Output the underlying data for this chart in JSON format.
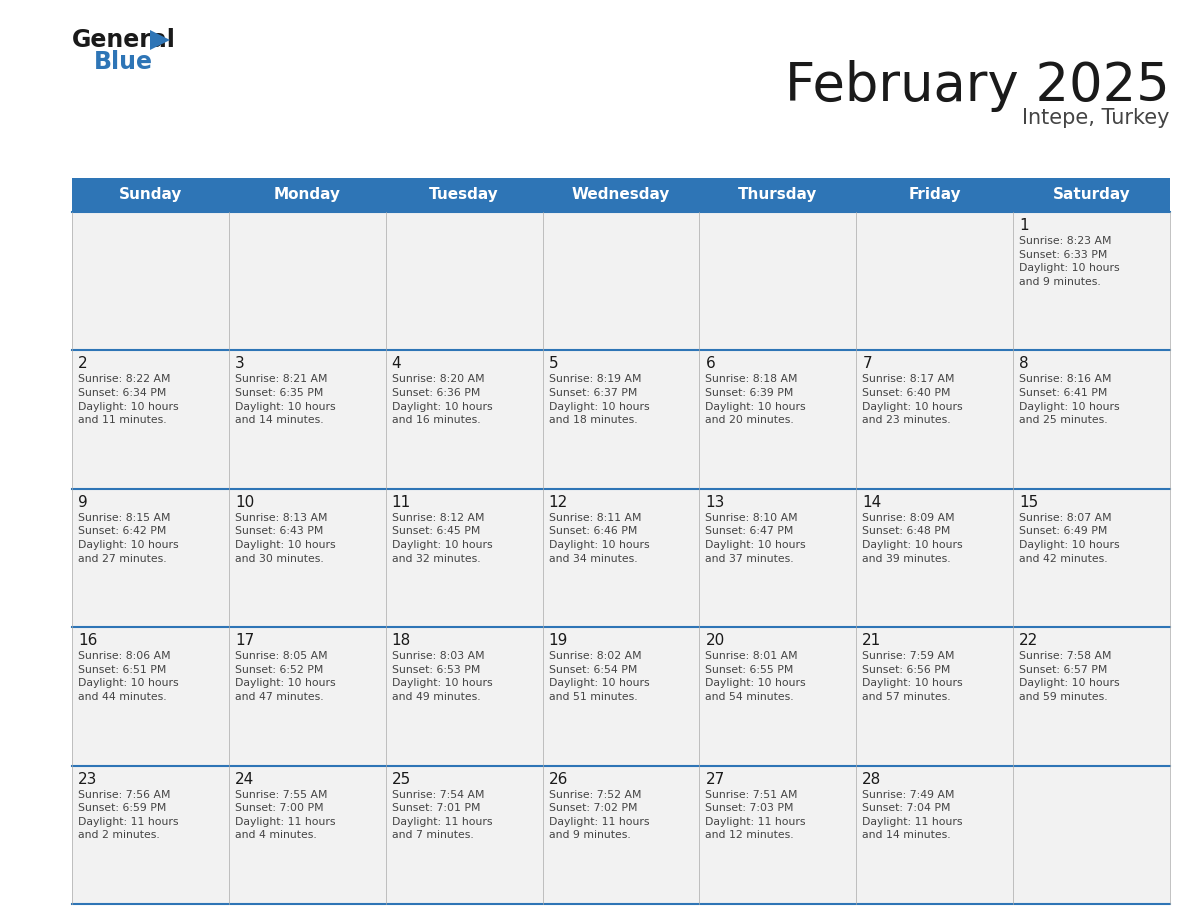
{
  "title": "February 2025",
  "subtitle": "Intepe, Turkey",
  "header_bg": "#2e75b6",
  "header_text_color": "#ffffff",
  "cell_bg": "#f2f2f2",
  "day_headers": [
    "Sunday",
    "Monday",
    "Tuesday",
    "Wednesday",
    "Thursday",
    "Friday",
    "Saturday"
  ],
  "title_color": "#1a1a1a",
  "subtitle_color": "#444444",
  "day_number_color": "#1a1a1a",
  "cell_text_color": "#444444",
  "grid_line_color": "#2e75b6",
  "logo_general_color": "#1a1a1a",
  "logo_blue_color": "#2e75b6",
  "logo_triangle_color": "#2e75b6",
  "weeks": [
    [
      {
        "day": "",
        "info": ""
      },
      {
        "day": "",
        "info": ""
      },
      {
        "day": "",
        "info": ""
      },
      {
        "day": "",
        "info": ""
      },
      {
        "day": "",
        "info": ""
      },
      {
        "day": "",
        "info": ""
      },
      {
        "day": "1",
        "info": "Sunrise: 8:23 AM\nSunset: 6:33 PM\nDaylight: 10 hours\nand 9 minutes."
      }
    ],
    [
      {
        "day": "2",
        "info": "Sunrise: 8:22 AM\nSunset: 6:34 PM\nDaylight: 10 hours\nand 11 minutes."
      },
      {
        "day": "3",
        "info": "Sunrise: 8:21 AM\nSunset: 6:35 PM\nDaylight: 10 hours\nand 14 minutes."
      },
      {
        "day": "4",
        "info": "Sunrise: 8:20 AM\nSunset: 6:36 PM\nDaylight: 10 hours\nand 16 minutes."
      },
      {
        "day": "5",
        "info": "Sunrise: 8:19 AM\nSunset: 6:37 PM\nDaylight: 10 hours\nand 18 minutes."
      },
      {
        "day": "6",
        "info": "Sunrise: 8:18 AM\nSunset: 6:39 PM\nDaylight: 10 hours\nand 20 minutes."
      },
      {
        "day": "7",
        "info": "Sunrise: 8:17 AM\nSunset: 6:40 PM\nDaylight: 10 hours\nand 23 minutes."
      },
      {
        "day": "8",
        "info": "Sunrise: 8:16 AM\nSunset: 6:41 PM\nDaylight: 10 hours\nand 25 minutes."
      }
    ],
    [
      {
        "day": "9",
        "info": "Sunrise: 8:15 AM\nSunset: 6:42 PM\nDaylight: 10 hours\nand 27 minutes."
      },
      {
        "day": "10",
        "info": "Sunrise: 8:13 AM\nSunset: 6:43 PM\nDaylight: 10 hours\nand 30 minutes."
      },
      {
        "day": "11",
        "info": "Sunrise: 8:12 AM\nSunset: 6:45 PM\nDaylight: 10 hours\nand 32 minutes."
      },
      {
        "day": "12",
        "info": "Sunrise: 8:11 AM\nSunset: 6:46 PM\nDaylight: 10 hours\nand 34 minutes."
      },
      {
        "day": "13",
        "info": "Sunrise: 8:10 AM\nSunset: 6:47 PM\nDaylight: 10 hours\nand 37 minutes."
      },
      {
        "day": "14",
        "info": "Sunrise: 8:09 AM\nSunset: 6:48 PM\nDaylight: 10 hours\nand 39 minutes."
      },
      {
        "day": "15",
        "info": "Sunrise: 8:07 AM\nSunset: 6:49 PM\nDaylight: 10 hours\nand 42 minutes."
      }
    ],
    [
      {
        "day": "16",
        "info": "Sunrise: 8:06 AM\nSunset: 6:51 PM\nDaylight: 10 hours\nand 44 minutes."
      },
      {
        "day": "17",
        "info": "Sunrise: 8:05 AM\nSunset: 6:52 PM\nDaylight: 10 hours\nand 47 minutes."
      },
      {
        "day": "18",
        "info": "Sunrise: 8:03 AM\nSunset: 6:53 PM\nDaylight: 10 hours\nand 49 minutes."
      },
      {
        "day": "19",
        "info": "Sunrise: 8:02 AM\nSunset: 6:54 PM\nDaylight: 10 hours\nand 51 minutes."
      },
      {
        "day": "20",
        "info": "Sunrise: 8:01 AM\nSunset: 6:55 PM\nDaylight: 10 hours\nand 54 minutes."
      },
      {
        "day": "21",
        "info": "Sunrise: 7:59 AM\nSunset: 6:56 PM\nDaylight: 10 hours\nand 57 minutes."
      },
      {
        "day": "22",
        "info": "Sunrise: 7:58 AM\nSunset: 6:57 PM\nDaylight: 10 hours\nand 59 minutes."
      }
    ],
    [
      {
        "day": "23",
        "info": "Sunrise: 7:56 AM\nSunset: 6:59 PM\nDaylight: 11 hours\nand 2 minutes."
      },
      {
        "day": "24",
        "info": "Sunrise: 7:55 AM\nSunset: 7:00 PM\nDaylight: 11 hours\nand 4 minutes."
      },
      {
        "day": "25",
        "info": "Sunrise: 7:54 AM\nSunset: 7:01 PM\nDaylight: 11 hours\nand 7 minutes."
      },
      {
        "day": "26",
        "info": "Sunrise: 7:52 AM\nSunset: 7:02 PM\nDaylight: 11 hours\nand 9 minutes."
      },
      {
        "day": "27",
        "info": "Sunrise: 7:51 AM\nSunset: 7:03 PM\nDaylight: 11 hours\nand 12 minutes."
      },
      {
        "day": "28",
        "info": "Sunrise: 7:49 AM\nSunset: 7:04 PM\nDaylight: 11 hours\nand 14 minutes."
      },
      {
        "day": "",
        "info": ""
      }
    ]
  ]
}
